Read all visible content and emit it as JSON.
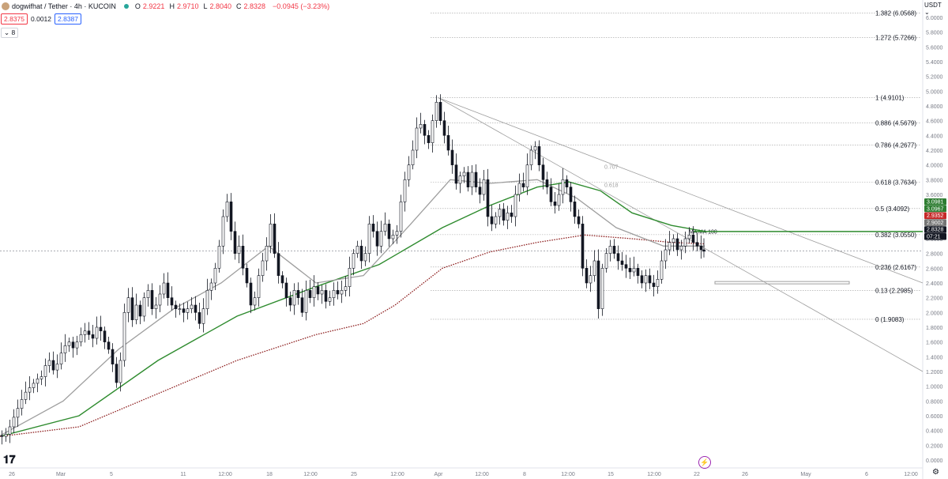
{
  "header": {
    "symbol_title": "dogwifhat / Tether · 4h · KUCOIN",
    "ohlc": [
      {
        "k": "O",
        "v": "2.9221"
      },
      {
        "k": "H",
        "v": "2.9710"
      },
      {
        "k": "L",
        "v": "2.8040"
      },
      {
        "k": "C",
        "v": "2.8328"
      },
      {
        "k": "",
        "v": "−0.0945 (−3.23%)"
      }
    ],
    "sell_price": "2.8375",
    "spread": "0.0012",
    "buy_price": "2.8387",
    "indicators_toggle": "⌄ 8",
    "currency": "USDT ⌄"
  },
  "colors": {
    "up": "#131722",
    "down": "#131722",
    "ma_green": "#2e8b2e",
    "ma_red": "#8b1a1a",
    "ma_gray": "#9e9e9e",
    "fib_line": "#9e9e9e"
  },
  "chart_data": {
    "type": "candlestick",
    "title": "dogwifhat / Tether · 4h · KUCOIN",
    "y_axis": {
      "ticks": [
        "6.0000",
        "5.8000",
        "5.6000",
        "5.4000",
        "5.2000",
        "5.0000",
        "4.8000",
        "4.6000",
        "4.4000",
        "4.2000",
        "4.0000",
        "3.8000",
        "3.6000",
        "3.4000",
        "3.2000",
        "3.0000",
        "2.8000",
        "2.6000",
        "2.4000",
        "2.2000",
        "2.0000",
        "1.8000",
        "1.6000",
        "1.4000",
        "1.2000",
        "1.0000",
        "0.8000",
        "0.6000",
        "0.4000",
        "0.2000",
        "0.0000"
      ],
      "range": [
        0.0,
        6.2
      ]
    },
    "x_axis": {
      "ticks": [
        "26",
        "Mar",
        "5",
        "11",
        "12:00",
        "18",
        "12:00",
        "25",
        "12:00",
        "Apr",
        "12:00",
        "8",
        "12:00",
        "15",
        "12:00",
        "22",
        "26",
        "May",
        "6",
        "12:00"
      ]
    },
    "price_path": [
      [
        0,
        0.33
      ],
      [
        5,
        0.32
      ],
      [
        10,
        0.35
      ],
      [
        15,
        0.45
      ],
      [
        20,
        0.58
      ],
      [
        25,
        0.7
      ],
      [
        30,
        0.82
      ],
      [
        35,
        0.92
      ],
      [
        40,
        0.98
      ],
      [
        45,
        1.04
      ],
      [
        50,
        1.1
      ],
      [
        55,
        1.13
      ],
      [
        60,
        1.28
      ],
      [
        65,
        1.35
      ],
      [
        70,
        1.22
      ],
      [
        75,
        1.3
      ],
      [
        80,
        1.45
      ],
      [
        85,
        1.55
      ],
      [
        90,
        1.6
      ],
      [
        95,
        1.52
      ],
      [
        100,
        1.6
      ],
      [
        105,
        1.7
      ],
      [
        110,
        1.75
      ],
      [
        115,
        1.7
      ],
      [
        120,
        1.65
      ],
      [
        125,
        1.8
      ],
      [
        130,
        1.75
      ],
      [
        135,
        1.6
      ],
      [
        140,
        1.5
      ],
      [
        145,
        1.3
      ],
      [
        150,
        1.05
      ],
      [
        155,
        1.35
      ],
      [
        160,
        2.0
      ],
      [
        165,
        2.2
      ],
      [
        170,
        1.9
      ],
      [
        175,
        2.1
      ],
      [
        180,
        1.95
      ],
      [
        185,
        2.2
      ],
      [
        190,
        2.3
      ],
      [
        195,
        2.05
      ],
      [
        200,
        2.1
      ],
      [
        205,
        2.25
      ],
      [
        210,
        2.4
      ],
      [
        215,
        2.2
      ],
      [
        220,
        2.1
      ],
      [
        225,
        2.05
      ],
      [
        230,
        2.05
      ],
      [
        235,
        2.0
      ],
      [
        240,
        2.05
      ],
      [
        245,
        2.1
      ],
      [
        250,
        2.0
      ],
      [
        255,
        1.85
      ],
      [
        260,
        2.05
      ],
      [
        265,
        2.3
      ],
      [
        270,
        2.4
      ],
      [
        275,
        2.6
      ],
      [
        280,
        2.9
      ],
      [
        285,
        3.3
      ],
      [
        290,
        3.5
      ],
      [
        295,
        3.1
      ],
      [
        300,
        2.8
      ],
      [
        305,
        2.9
      ],
      [
        310,
        2.6
      ],
      [
        315,
        2.4
      ],
      [
        320,
        2.1
      ],
      [
        325,
        2.2
      ],
      [
        330,
        2.5
      ],
      [
        335,
        2.7
      ],
      [
        340,
        2.9
      ],
      [
        345,
        3.2
      ],
      [
        350,
        2.8
      ],
      [
        355,
        2.5
      ],
      [
        360,
        2.4
      ],
      [
        365,
        2.2
      ],
      [
        370,
        2.1
      ],
      [
        375,
        2.3
      ],
      [
        380,
        2.2
      ],
      [
        385,
        2.0
      ],
      [
        390,
        2.3
      ],
      [
        395,
        2.2
      ],
      [
        400,
        2.35
      ],
      [
        405,
        2.25
      ],
      [
        410,
        2.3
      ],
      [
        415,
        2.15
      ],
      [
        420,
        2.2
      ],
      [
        425,
        2.3
      ],
      [
        430,
        2.25
      ],
      [
        435,
        2.3
      ],
      [
        440,
        2.35
      ],
      [
        445,
        2.6
      ],
      [
        450,
        2.8
      ],
      [
        455,
        2.9
      ],
      [
        460,
        2.7
      ],
      [
        465,
        2.8
      ],
      [
        470,
        3.2
      ],
      [
        475,
        3.1
      ],
      [
        480,
        2.9
      ],
      [
        485,
        3.1
      ],
      [
        490,
        3.2
      ],
      [
        495,
        3.0
      ],
      [
        500,
        3.05
      ],
      [
        505,
        3.1
      ],
      [
        510,
        3.5
      ],
      [
        515,
        3.8
      ],
      [
        520,
        4.0
      ],
      [
        525,
        4.2
      ],
      [
        530,
        4.5
      ],
      [
        535,
        4.55
      ],
      [
        540,
        4.4
      ],
      [
        545,
        4.3
      ],
      [
        550,
        4.6
      ],
      [
        555,
        4.85
      ],
      [
        560,
        4.6
      ],
      [
        565,
        4.4
      ],
      [
        570,
        4.2
      ],
      [
        575,
        4.0
      ],
      [
        580,
        3.75
      ],
      [
        585,
        3.85
      ],
      [
        590,
        3.9
      ],
      [
        595,
        3.7
      ],
      [
        600,
        3.9
      ],
      [
        605,
        3.7
      ],
      [
        610,
        3.6
      ],
      [
        615,
        3.8
      ],
      [
        620,
        3.3
      ],
      [
        625,
        3.2
      ],
      [
        630,
        3.3
      ],
      [
        635,
        3.4
      ],
      [
        640,
        3.25
      ],
      [
        645,
        3.35
      ],
      [
        650,
        3.3
      ],
      [
        655,
        3.6
      ],
      [
        660,
        3.75
      ],
      [
        665,
        3.7
      ],
      [
        670,
        4.0
      ],
      [
        675,
        4.2
      ],
      [
        680,
        4.25
      ],
      [
        685,
        4.0
      ],
      [
        690,
        3.8
      ],
      [
        695,
        3.7
      ],
      [
        700,
        3.5
      ],
      [
        705,
        3.45
      ],
      [
        710,
        3.6
      ],
      [
        715,
        3.8
      ],
      [
        720,
        3.7
      ],
      [
        725,
        3.5
      ],
      [
        730,
        3.3
      ],
      [
        735,
        3.2
      ],
      [
        740,
        2.6
      ],
      [
        745,
        2.4
      ],
      [
        750,
        2.5
      ],
      [
        755,
        2.7
      ],
      [
        760,
        2.05
      ],
      [
        765,
        2.6
      ],
      [
        770,
        2.8
      ],
      [
        775,
        2.9
      ],
      [
        780,
        2.8
      ],
      [
        785,
        2.7
      ],
      [
        790,
        2.65
      ],
      [
        795,
        2.6
      ],
      [
        800,
        2.55
      ],
      [
        805,
        2.6
      ],
      [
        810,
        2.5
      ],
      [
        815,
        2.4
      ],
      [
        820,
        2.5
      ],
      [
        825,
        2.4
      ],
      [
        830,
        2.35
      ],
      [
        835,
        2.45
      ],
      [
        840,
        2.7
      ],
      [
        845,
        2.85
      ],
      [
        850,
        2.95
      ],
      [
        855,
        3.0
      ],
      [
        860,
        2.85
      ],
      [
        865,
        2.9
      ],
      [
        870,
        3.0
      ],
      [
        875,
        3.05
      ],
      [
        880,
        2.95
      ],
      [
        885,
        2.9
      ],
      [
        890,
        2.85
      ],
      [
        892,
        2.83
      ]
    ],
    "moving_averages": [
      {
        "label": "MA 100 (green)",
        "color": "#2e8b2e",
        "values": [
          [
            0,
            0.32
          ],
          [
            100,
            0.6
          ],
          [
            200,
            1.35
          ],
          [
            300,
            1.95
          ],
          [
            400,
            2.35
          ],
          [
            480,
            2.65
          ],
          [
            560,
            3.15
          ],
          [
            620,
            3.45
          ],
          [
            680,
            3.7
          ],
          [
            720,
            3.77
          ],
          [
            760,
            3.65
          ],
          [
            800,
            3.35
          ],
          [
            850,
            3.18
          ],
          [
            892,
            3.1
          ]
        ]
      },
      {
        "label": "MA 200 (dark red, dotted)",
        "color": "#8b1a1a",
        "values": [
          [
            0,
            0.32
          ],
          [
            100,
            0.45
          ],
          [
            200,
            0.9
          ],
          [
            300,
            1.35
          ],
          [
            400,
            1.7
          ],
          [
            460,
            1.85
          ],
          [
            500,
            2.1
          ],
          [
            560,
            2.6
          ],
          [
            620,
            2.82
          ],
          [
            680,
            2.95
          ],
          [
            740,
            3.05
          ],
          [
            800,
            3.0
          ],
          [
            850,
            2.95
          ],
          [
            892,
            2.93
          ]
        ]
      },
      {
        "label": "MA 50 (gray)",
        "color": "#9e9e9e",
        "values": [
          [
            0,
            0.33
          ],
          [
            80,
            0.8
          ],
          [
            150,
            1.5
          ],
          [
            220,
            2.05
          ],
          [
            280,
            2.4
          ],
          [
            340,
            2.9
          ],
          [
            400,
            2.4
          ],
          [
            460,
            2.5
          ],
          [
            520,
            3.2
          ],
          [
            570,
            3.8
          ],
          [
            620,
            3.75
          ],
          [
            680,
            3.8
          ],
          [
            730,
            3.55
          ],
          [
            780,
            3.15
          ],
          [
            840,
            2.9
          ],
          [
            892,
            2.9
          ]
        ]
      }
    ],
    "fibonacci": [
      {
        "label": "1.382 (6.0568)",
        "value": 6.0568
      },
      {
        "label": "1.272 (5.7266)",
        "value": 5.7266
      },
      {
        "label": "1 (4.9101)",
        "value": 4.9101
      },
      {
        "label": "0.886 (4.5679)",
        "value": 4.5679
      },
      {
        "label": "0.786 (4.2677)",
        "value": 4.2677
      },
      {
        "label": "0.618 (3.7634)",
        "value": 3.7634
      },
      {
        "label": "0.5 (3.4092)",
        "value": 3.4092
      },
      {
        "label": "0.382 (3.0550)",
        "value": 3.055
      },
      {
        "label": "0.236 (2.6167)",
        "value": 2.6167
      },
      {
        "label": "0.13 (2.2985)",
        "value": 2.2985
      },
      {
        "label": "0 (1.9083)",
        "value": 1.9083
      }
    ],
    "fan_labels": [
      {
        "label": "0.707"
      },
      {
        "label": "0.618"
      },
      {
        "label": "MA MA 100"
      }
    ],
    "horizontal_levels": [
      {
        "value": 3.0981,
        "color": "#2e8b2e"
      },
      {
        "value": 2.8328,
        "color": "#9e9e9e"
      }
    ],
    "price_tags": [
      {
        "label": "3.0981",
        "value": 3.0981,
        "bg": "#2e7d32"
      },
      {
        "label": "3.0967",
        "value": 3.0967,
        "bg": "#2e7d32"
      },
      {
        "label": "2.9352",
        "value": 2.9352,
        "bg": "#c62828"
      },
      {
        "label": "2.9002",
        "value": 2.9002,
        "bg": "#757575"
      },
      {
        "label": "2.8328",
        "value": 2.8328,
        "bg": "#131722"
      },
      {
        "label": "07:21",
        "value": 2.7,
        "bg": "#131722"
      }
    ]
  }
}
